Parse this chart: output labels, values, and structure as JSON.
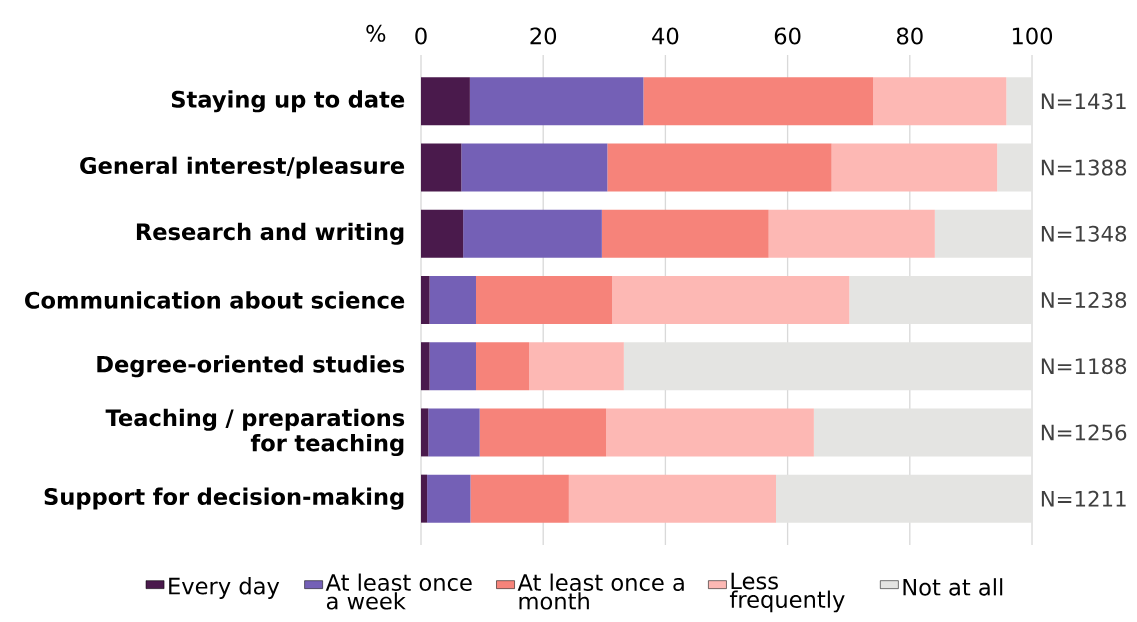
{
  "chart_data": {
    "type": "bar",
    "orientation": "horizontal",
    "stacked": true,
    "xlabel": "%",
    "categories": [
      "Staying up to date",
      "General interest/pleasure",
      "Research and writing",
      "Communication about science",
      "Degree-oriented studies",
      "Teaching / preparations for teaching",
      "Support for decision-making"
    ],
    "series": [
      {
        "name": "Every day",
        "color": "#4a1a4c",
        "values": [
          8.0,
          6.6,
          6.9,
          1.4,
          1.4,
          1.2,
          1.0
        ]
      },
      {
        "name": "At least once a week",
        "color": "#7460b6",
        "values": [
          28.4,
          23.9,
          22.7,
          7.6,
          7.6,
          8.4,
          7.1
        ]
      },
      {
        "name": "At least once a month",
        "color": "#f6837a",
        "values": [
          37.6,
          36.7,
          27.3,
          22.3,
          8.7,
          20.7,
          16.1
        ]
      },
      {
        "name": "Less frequently",
        "color": "#fdb8b4",
        "values": [
          21.8,
          27.1,
          27.2,
          38.8,
          15.5,
          34.0,
          33.9
        ]
      },
      {
        "name": "Not at all",
        "color": "#e4e4e2",
        "values": [
          4.2,
          5.7,
          15.9,
          29.9,
          66.8,
          35.7,
          41.9
        ]
      }
    ],
    "xlim": [
      0,
      100
    ],
    "xticks": [
      0,
      20,
      40,
      60,
      80,
      100
    ],
    "grid": "x",
    "legend": "bottom",
    "annotations": [
      "N=1431",
      "N=1388",
      "N=1348",
      "N=1238",
      "N=1188",
      "N=1256",
      "N=1211"
    ]
  }
}
